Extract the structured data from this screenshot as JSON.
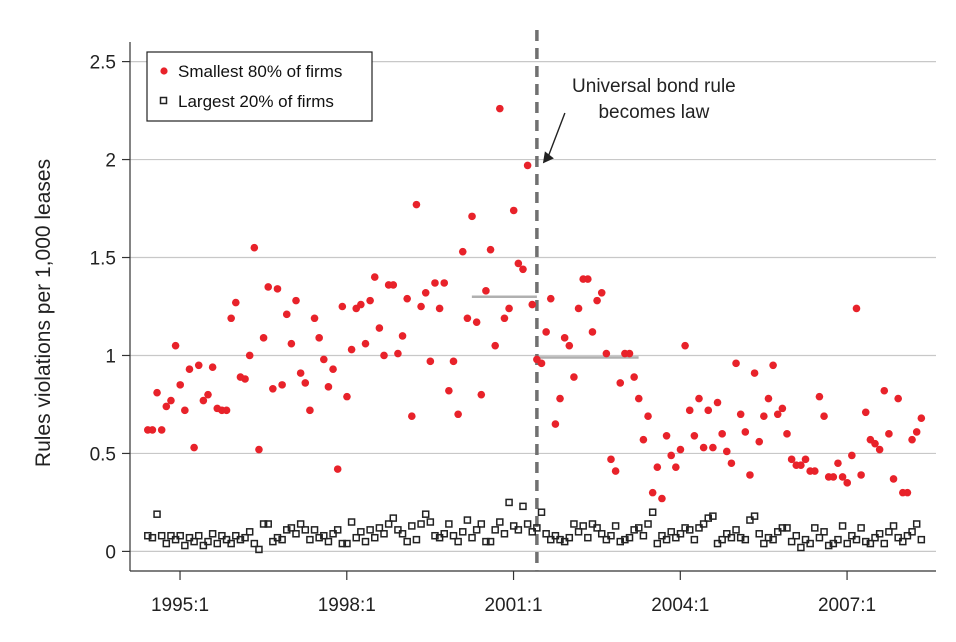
{
  "chart_data": {
    "type": "scatter",
    "title": "",
    "xlabel": "",
    "ylabel": "Rules violations per 1,000 leases",
    "x_ticks": [
      {
        "label": "1995:1",
        "t": 1995.0
      },
      {
        "label": "1998:1",
        "t": 1998.0
      },
      {
        "label": "2001:1",
        "t": 2001.0
      },
      {
        "label": "2004:1",
        "t": 2004.0
      },
      {
        "label": "2007:1",
        "t": 2007.0
      }
    ],
    "x_range": [
      1994.1,
      2008.6
    ],
    "y_ticks": [
      0,
      0.5,
      1,
      1.5,
      2,
      2.5
    ],
    "y_tick_labels": [
      "0",
      "0.5",
      "1",
      "1.5",
      "2",
      "2.5"
    ],
    "ylim": [
      -0.1,
      2.6
    ],
    "grid": "horizontal",
    "legend_position": "top-left",
    "event": {
      "t": 2001.42,
      "label_lines": [
        "Universal bond rule",
        "becomes law"
      ]
    },
    "mean_segments": [
      {
        "t_start": 2000.25,
        "t_end": 2001.42,
        "value": 1.3
      },
      {
        "t_start": 2001.42,
        "t_end": 2003.25,
        "value": 0.99
      }
    ],
    "series": [
      {
        "name": "Smallest 80% of firms",
        "marker": "filled-circle",
        "color": "#e8222a",
        "t_start": 1994.42,
        "t_step": 0.08333,
        "values": [
          0.62,
          0.62,
          0.81,
          0.62,
          0.74,
          0.77,
          1.05,
          0.85,
          0.72,
          0.93,
          0.53,
          0.95,
          0.77,
          0.8,
          0.94,
          0.73,
          0.72,
          0.72,
          1.19,
          1.27,
          0.89,
          0.88,
          1.0,
          1.55,
          0.52,
          1.09,
          1.35,
          0.83,
          1.34,
          0.85,
          1.21,
          1.06,
          1.28,
          0.91,
          0.86,
          0.72,
          1.19,
          1.09,
          0.98,
          0.84,
          0.93,
          0.42,
          1.25,
          0.79,
          1.03,
          1.24,
          1.26,
          1.06,
          1.28,
          1.4,
          1.14,
          1.0,
          1.36,
          1.36,
          1.01,
          1.1,
          1.29,
          0.69,
          1.77,
          1.25,
          1.32,
          0.97,
          1.37,
          1.24,
          1.37,
          0.82,
          0.97,
          0.7,
          1.53,
          1.19,
          1.71,
          1.17,
          0.8,
          1.33,
          1.54,
          1.05,
          2.26,
          1.19,
          1.24,
          1.74,
          1.47,
          1.44,
          1.97,
          1.26,
          0.98,
          0.96,
          1.12,
          1.29,
          0.65,
          0.78,
          1.09,
          1.05,
          0.89,
          1.24,
          1.39,
          1.39,
          1.12,
          1.28,
          1.32,
          1.01,
          0.47,
          0.41,
          0.86,
          1.01,
          1.01,
          0.89,
          0.78,
          0.57,
          0.69,
          0.3,
          0.43,
          0.27,
          0.59,
          0.49,
          0.43,
          0.52,
          1.05,
          0.72,
          0.59,
          0.78,
          0.53,
          0.72,
          0.53,
          0.76,
          0.6,
          0.51,
          0.45,
          0.96,
          0.7,
          0.61,
          0.39,
          0.91,
          0.56,
          0.69,
          0.78,
          0.95,
          0.7,
          0.73,
          0.6,
          0.47,
          0.44,
          0.44,
          0.47,
          0.41,
          0.41,
          0.79,
          0.69,
          0.38,
          0.38,
          0.45,
          0.38,
          0.35,
          0.49,
          1.24,
          0.39,
          0.71,
          0.57,
          0.55,
          0.52,
          0.82,
          0.6,
          0.37,
          0.78,
          0.3,
          0.3,
          0.57,
          0.61,
          0.68
        ]
      },
      {
        "name": "Largest 20% of firms",
        "marker": "open-square",
        "color": "#222222",
        "t_start": 1994.42,
        "t_step": 0.08333,
        "values": [
          0.08,
          0.07,
          0.19,
          0.08,
          0.04,
          0.08,
          0.06,
          0.08,
          0.03,
          0.07,
          0.05,
          0.08,
          0.03,
          0.05,
          0.09,
          0.04,
          0.08,
          0.06,
          0.04,
          0.08,
          0.06,
          0.07,
          0.1,
          0.04,
          0.01,
          0.14,
          0.14,
          0.05,
          0.07,
          0.06,
          0.11,
          0.12,
          0.09,
          0.14,
          0.11,
          0.06,
          0.11,
          0.07,
          0.08,
          0.05,
          0.09,
          0.11,
          0.04,
          0.04,
          0.15,
          0.07,
          0.1,
          0.05,
          0.11,
          0.07,
          0.12,
          0.09,
          0.14,
          0.17,
          0.11,
          0.09,
          0.05,
          0.13,
          0.06,
          0.14,
          0.19,
          0.15,
          0.08,
          0.07,
          0.09,
          0.14,
          0.08,
          0.05,
          0.1,
          0.16,
          0.07,
          0.11,
          0.14,
          0.05,
          0.05,
          0.11,
          0.15,
          0.09,
          0.25,
          0.13,
          0.11,
          0.23,
          0.14,
          0.1,
          0.12,
          0.2,
          0.09,
          0.06,
          0.08,
          0.06,
          0.05,
          0.07,
          0.14,
          0.1,
          0.13,
          0.07,
          0.14,
          0.12,
          0.09,
          0.06,
          0.08,
          0.13,
          0.05,
          0.06,
          0.07,
          0.11,
          0.12,
          0.08,
          0.14,
          0.2,
          0.04,
          0.08,
          0.06,
          0.1,
          0.07,
          0.09,
          0.12,
          0.11,
          0.06,
          0.12,
          0.14,
          0.17,
          0.18,
          0.04,
          0.06,
          0.09,
          0.07,
          0.11,
          0.07,
          0.06,
          0.16,
          0.18,
          0.09,
          0.04,
          0.07,
          0.06,
          0.1,
          0.12,
          0.12,
          0.05,
          0.08,
          0.02,
          0.06,
          0.04,
          0.12,
          0.07,
          0.1,
          0.03,
          0.04,
          0.06,
          0.13,
          0.04,
          0.08,
          0.06,
          0.12,
          0.05,
          0.04,
          0.07,
          0.09,
          0.04,
          0.1,
          0.13,
          0.07,
          0.05,
          0.08,
          0.1,
          0.14,
          0.06
        ]
      }
    ]
  }
}
